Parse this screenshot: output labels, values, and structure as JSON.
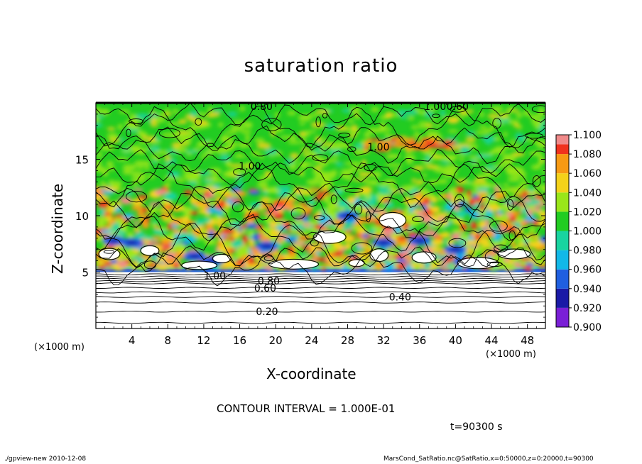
{
  "chart_data": {
    "type": "heatmap",
    "title": "saturation ratio",
    "xlabel": "X-coordinate",
    "ylabel": "Z-coordinate",
    "x_unit": "(×1000 m)",
    "y_unit": "(×1000 m)",
    "xlim": [
      0,
      50
    ],
    "ylim": [
      0,
      20
    ],
    "x_ticks": [
      4,
      8,
      12,
      16,
      20,
      24,
      28,
      32,
      36,
      40,
      44,
      48
    ],
    "y_ticks": [
      5,
      10,
      15
    ],
    "colorbar": {
      "levels": [
        0.9,
        0.92,
        0.94,
        0.96,
        0.98,
        1.0,
        1.02,
        1.04,
        1.06,
        1.08,
        1.1
      ],
      "tick_labels": [
        "0.900",
        "0.920",
        "0.940",
        "0.960",
        "0.980",
        "1.000",
        "1.020",
        "1.040",
        "1.060",
        "1.080",
        "1.100"
      ],
      "colors": [
        "#7a1fd6",
        "#1a1aa6",
        "#1f5fe0",
        "#12b8e8",
        "#19d4a0",
        "#22cc22",
        "#9ae61a",
        "#f4d21a",
        "#f79a14",
        "#f0321e",
        "#f08a8a"
      ]
    },
    "contour_interval": "CONTOUR INTERVAL = 1.000E-01",
    "contour_labels": [
      {
        "x": 17.2,
        "z": 19.7,
        "text": "0.80"
      },
      {
        "x": 36.5,
        "z": 19.7,
        "text": "1.00"
      },
      {
        "x": 39.0,
        "z": 19.7,
        "text": "0.60"
      },
      {
        "x": 30.2,
        "z": 16.1,
        "text": "1.00"
      },
      {
        "x": 15.9,
        "z": 14.4,
        "text": "1.00"
      },
      {
        "x": 12.0,
        "z": 4.7,
        "text": "1.00"
      },
      {
        "x": 18.0,
        "z": 4.2,
        "text": "0.80"
      },
      {
        "x": 17.6,
        "z": 3.6,
        "text": "0.60"
      },
      {
        "x": 32.6,
        "z": 2.8,
        "text": "0.40"
      },
      {
        "x": 17.8,
        "z": 1.5,
        "text": "0.20"
      }
    ],
    "time_label": "t=90300 s"
  },
  "footer": {
    "left": "./gpview-new  2010-12-08",
    "right": "MarsCond_SatRatio.nc@SatRatio,x=0:50000,z=0:20000,t=90300"
  }
}
